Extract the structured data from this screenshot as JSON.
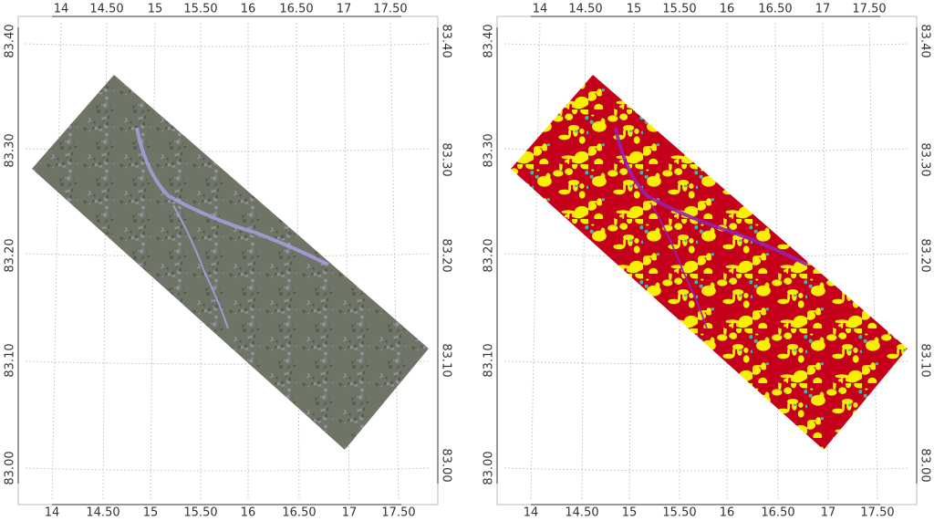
{
  "panels": [
    {
      "top_labels": [
        "14",
        "14.50",
        "15",
        "15.50",
        "16",
        "16.50",
        "17",
        "17.50"
      ],
      "bottom_labels": [
        "14",
        "14.50",
        "15",
        "15.50",
        "16",
        "16.50",
        "17",
        "17.50"
      ],
      "left_labels": [
        "83.40",
        "83.30",
        "83.20",
        "83.10",
        "83.00"
      ],
      "right_labels": [
        "83.40",
        "83.30",
        "83.20",
        "83.10",
        "83.00"
      ]
    },
    {
      "top_labels": [
        "14",
        "14.50",
        "15",
        "15.50",
        "16",
        "16.50",
        "17",
        "17.50"
      ],
      "bottom_labels": [
        "14",
        "14.50",
        "15",
        "15.50",
        "16",
        "16.50",
        "17",
        "17.50"
      ],
      "left_labels": [
        "83.40",
        "83.30",
        "83.20",
        "83.10",
        "83.00"
      ],
      "right_labels": [
        "83.40",
        "83.30",
        "83.20",
        "83.10",
        "83.00"
      ]
    }
  ]
}
